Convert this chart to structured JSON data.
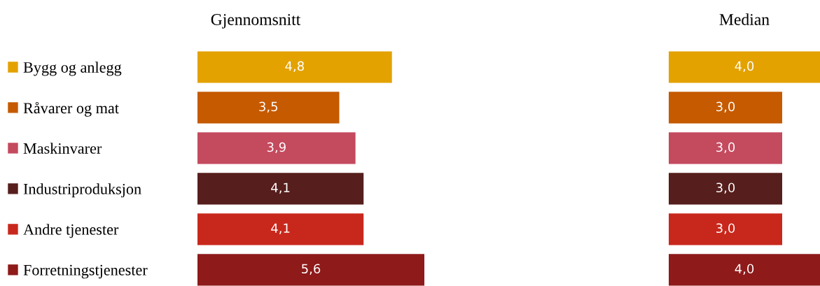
{
  "chart_data": [
    {
      "type": "bar",
      "orientation": "horizontal",
      "title": "Gjennomsnitt",
      "categories": [
        "Bygg og anlegg",
        "Råvarer og mat",
        "Maskinvarer",
        "Industriproduksjon",
        "Andre tjenester",
        "Forretningstjenester"
      ],
      "values": [
        4.8,
        3.5,
        3.9,
        4.1,
        4.1,
        5.6
      ],
      "value_labels": [
        "4,8",
        "3,5",
        "3,9",
        "4,1",
        "4,1",
        "5,6"
      ],
      "colors": [
        "#e3a200",
        "#c55a00",
        "#c44a5e",
        "#561e1c",
        "#c8281c",
        "#8e1a1a"
      ]
    },
    {
      "type": "bar",
      "orientation": "horizontal",
      "title": "Median",
      "categories": [
        null,
        null,
        null,
        null,
        null,
        null
      ],
      "values": [
        4.0,
        3.0,
        3.0,
        3.0,
        3.0,
        4.0
      ],
      "value_labels": [
        "4,0",
        "3,0",
        "3,0",
        "3,0",
        "3,0",
        "4,0"
      ],
      "colors": [
        "#e3a200",
        "#c55a00",
        "#c44a5e",
        "#561e1c",
        "#c8281c",
        "#8e1a1a"
      ]
    }
  ]
}
